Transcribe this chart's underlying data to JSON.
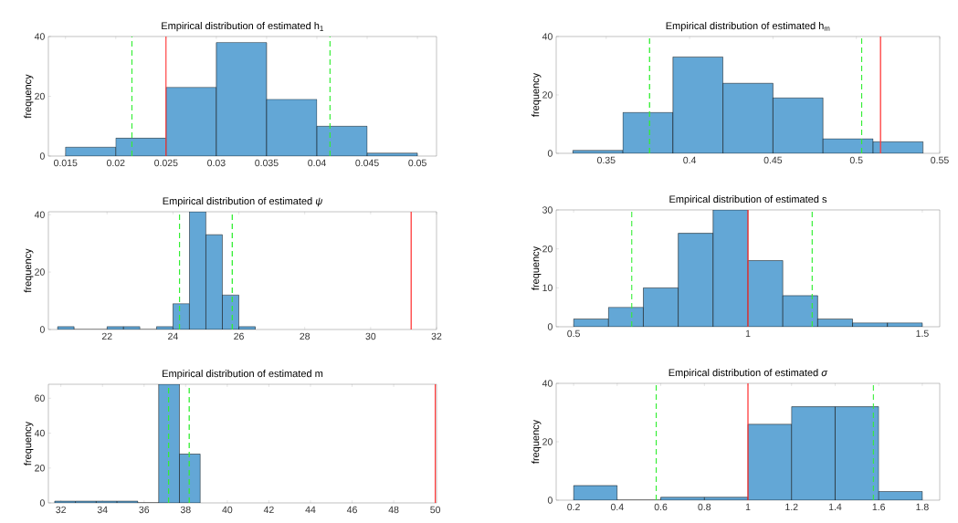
{
  "chart_data": [
    {
      "type": "histogram",
      "title": "Empirical distribution of estimated h$_{1}$",
      "ylabel": "frequency",
      "color": "#63a7d6",
      "grid": false,
      "bins": [
        0.015,
        0.02,
        0.025,
        0.03,
        0.035,
        0.04,
        0.045,
        0.05
      ],
      "values": [
        3,
        6,
        23,
        38,
        19,
        10,
        1
      ],
      "xlim": [
        0.0133,
        0.0519
      ],
      "xticks": [
        0.015,
        0.02,
        0.025,
        0.03,
        0.035,
        0.04,
        0.045,
        0.05
      ],
      "ylim": [
        0,
        40
      ],
      "yticks": [
        0,
        20,
        40
      ],
      "ref_lines": [
        {
          "axis": "x",
          "value": 0.025,
          "color": "#ff3b3b",
          "line_style": "solid"
        },
        {
          "axis": "x",
          "value": 0.0216,
          "color": "#33ee33",
          "line_style": "dashed"
        },
        {
          "axis": "x",
          "value": 0.0413,
          "color": "#33ee33",
          "line_style": "dashed"
        }
      ]
    },
    {
      "type": "histogram",
      "title": "Empirical distribution of estimated h$_{m}$",
      "ylabel": "frequency",
      "color": "#63a7d6",
      "grid": false,
      "bins": [
        0.33,
        0.36,
        0.39,
        0.42,
        0.45,
        0.48,
        0.51,
        0.54
      ],
      "values": [
        1,
        14,
        33,
        24,
        19,
        5,
        4
      ],
      "xlim": [
        0.32,
        0.55
      ],
      "xticks": [
        0.35,
        0.4,
        0.45,
        0.5,
        0.55
      ],
      "ylim": [
        0,
        40
      ],
      "yticks": [
        0,
        20,
        40
      ],
      "ref_lines": [
        {
          "axis": "x",
          "value": 0.5145,
          "color": "#ff3b3b",
          "line_style": "solid"
        },
        {
          "axis": "x",
          "value": 0.376,
          "color": "#33ee33",
          "line_style": "dashed"
        },
        {
          "axis": "x",
          "value": 0.5032,
          "color": "#33ee33",
          "line_style": "dashed"
        }
      ]
    },
    {
      "type": "histogram",
      "title": "Empirical distribution of estimated *ψ*",
      "ylabel": "frequency",
      "color": "#63a7d6",
      "grid": false,
      "bins": [
        20.5,
        21,
        21.5,
        22,
        22.5,
        23,
        23.5,
        24,
        24.5,
        25,
        25.5,
        26,
        26.5
      ],
      "values": [
        1,
        0,
        0,
        1,
        1,
        0,
        1,
        9,
        41,
        33,
        12,
        1
      ],
      "xlim": [
        20.22,
        32
      ],
      "xticks": [
        22,
        24,
        26,
        28,
        30,
        32
      ],
      "ylim": [
        0,
        41
      ],
      "yticks": [
        0,
        20,
        40
      ],
      "ref_lines": [
        {
          "axis": "x",
          "value": 31.23,
          "color": "#ff3b3b",
          "line_style": "solid"
        },
        {
          "axis": "x",
          "value": 24.2,
          "color": "#33ee33",
          "line_style": "dashed"
        },
        {
          "axis": "x",
          "value": 25.8,
          "color": "#33ee33",
          "line_style": "dashed"
        }
      ]
    },
    {
      "type": "histogram",
      "title": "Empirical distribution of estimated s",
      "ylabel": "frequency",
      "color": "#63a7d6",
      "grid": false,
      "bins": [
        0.5,
        0.6,
        0.7,
        0.8,
        0.9,
        1.0,
        1.1,
        1.2,
        1.3,
        1.4,
        1.5
      ],
      "values": [
        2,
        5,
        10,
        24,
        30,
        17,
        8,
        2,
        1,
        1
      ],
      "xlim": [
        0.45,
        1.55
      ],
      "xticks": [
        0.5,
        1,
        1.5
      ],
      "ylim": [
        0,
        30
      ],
      "yticks": [
        0,
        10,
        20,
        30
      ],
      "ref_lines": [
        {
          "axis": "x",
          "value": 1.0,
          "color": "#ff3b3b",
          "line_style": "solid"
        },
        {
          "axis": "x",
          "value": 0.667,
          "color": "#33ee33",
          "line_style": "dashed"
        },
        {
          "axis": "x",
          "value": 1.184,
          "color": "#33ee33",
          "line_style": "dashed"
        }
      ]
    },
    {
      "type": "histogram",
      "title": "Empirical distribution of estimated m",
      "ylabel": "frequency",
      "color": "#63a7d6",
      "grid": false,
      "bins": [
        31.7,
        32.7,
        33.7,
        34.7,
        35.7,
        36.7,
        37.7,
        38.7
      ],
      "values": [
        1,
        1,
        1,
        1,
        0,
        68,
        28
      ],
      "xlim": [
        31.4,
        50.06
      ],
      "xticks": [
        32,
        34,
        36,
        38,
        40,
        42,
        44,
        46,
        48,
        50
      ],
      "ylim": [
        0,
        68
      ],
      "yticks": [
        0,
        20,
        40,
        60
      ],
      "ref_lines": [
        {
          "axis": "x",
          "value": 50,
          "color": "#ff3b3b",
          "line_style": "solid"
        },
        {
          "axis": "x",
          "value": 37.18,
          "color": "#33ee33",
          "line_style": "dashed"
        },
        {
          "axis": "x",
          "value": 38.17,
          "color": "#33ee33",
          "line_style": "dashed"
        }
      ]
    },
    {
      "type": "histogram",
      "title": "Empirical distribution of estimated *σ*",
      "ylabel": "frequency",
      "color": "#63a7d6",
      "grid": false,
      "bins": [
        0.2,
        0.4,
        0.6,
        0.8,
        1.0,
        1.2,
        1.4,
        1.6,
        1.8
      ],
      "values": [
        5,
        0,
        1,
        1,
        26,
        32,
        32,
        3
      ],
      "xlim": [
        0.12,
        1.88
      ],
      "xticks": [
        0.2,
        0.4,
        0.6,
        0.8,
        1,
        1.2,
        1.4,
        1.6,
        1.8
      ],
      "ylim": [
        0,
        40
      ],
      "yticks": [
        0,
        20,
        40
      ],
      "ref_lines": [
        {
          "axis": "x",
          "value": 1.0,
          "color": "#ff3b3b",
          "line_style": "solid"
        },
        {
          "axis": "x",
          "value": 0.579,
          "color": "#33ee33",
          "line_style": "dashed"
        },
        {
          "axis": "x",
          "value": 1.575,
          "color": "#33ee33",
          "line_style": "dashed"
        }
      ]
    }
  ]
}
